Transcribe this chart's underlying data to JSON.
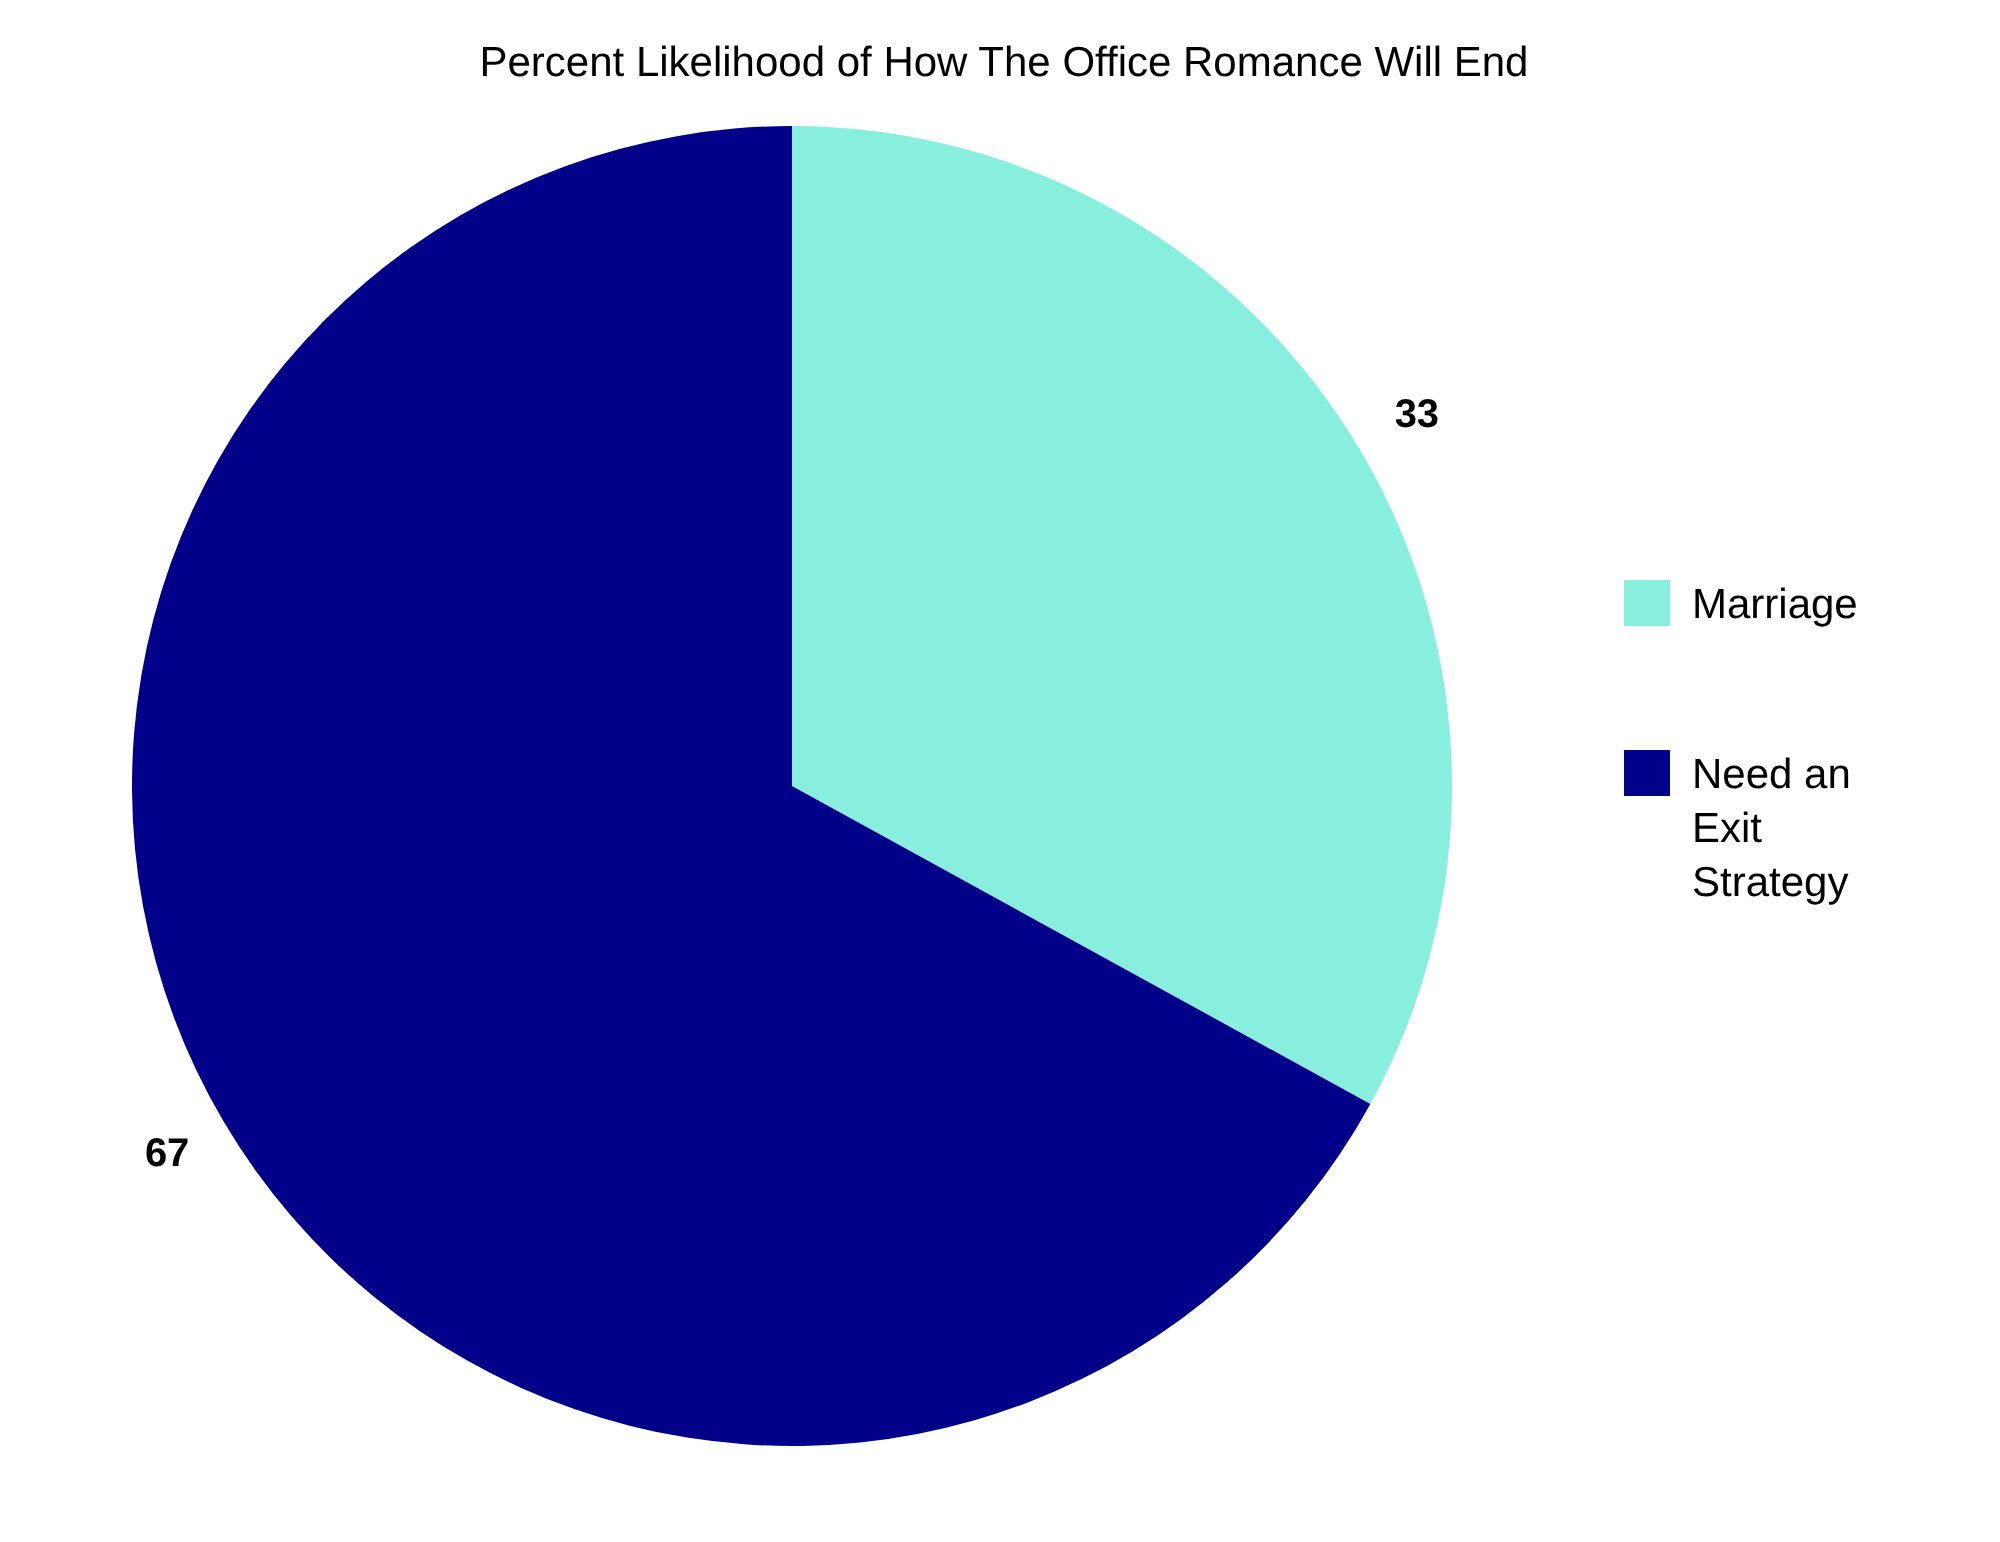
{
  "chart_data": {
    "type": "pie",
    "title": "Percent Likelihood of How The Office Romance Will End",
    "categories": [
      "Marriage",
      "Need an Exit Strategy"
    ],
    "values": [
      33,
      67
    ],
    "colors": [
      "#88eedd",
      "#000088"
    ],
    "data_labels": true,
    "legend": "right"
  }
}
